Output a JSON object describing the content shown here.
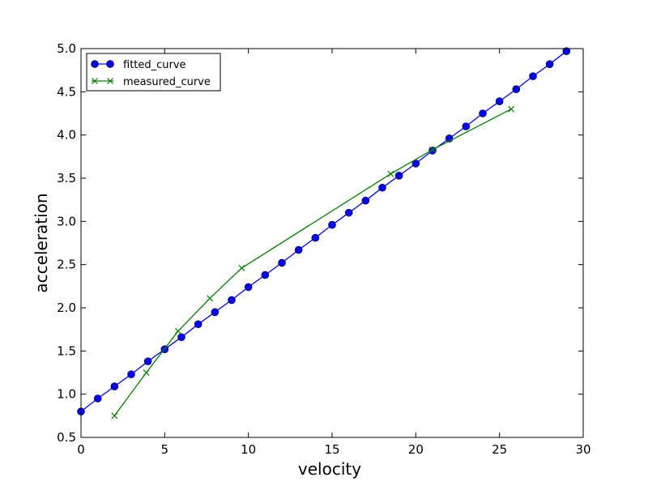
{
  "chart_data": {
    "type": "line",
    "title": "",
    "xlabel": "velocity",
    "ylabel": "acceleration",
    "xlim": [
      0,
      30
    ],
    "ylim": [
      0.5,
      5.0
    ],
    "xticks": [
      "0",
      "5",
      "10",
      "15",
      "20",
      "25",
      "30"
    ],
    "yticks": [
      "0.5",
      "1.0",
      "1.5",
      "2.0",
      "2.5",
      "3.0",
      "3.5",
      "4.0",
      "4.5",
      "5.0"
    ],
    "grid": false,
    "legend_position": "top-left",
    "series": [
      {
        "name": "fitted_curve",
        "color": "#0000ff",
        "marker": "circle",
        "x": [
          0,
          1,
          2,
          3,
          4,
          5,
          6,
          7,
          8,
          9,
          10,
          11,
          12,
          13,
          14,
          15,
          16,
          17,
          18,
          19,
          20,
          21,
          22,
          23,
          24,
          25,
          26,
          27,
          28,
          29
        ],
        "y": [
          0.8,
          0.95,
          1.09,
          1.23,
          1.38,
          1.52,
          1.66,
          1.81,
          1.95,
          2.09,
          2.24,
          2.38,
          2.52,
          2.67,
          2.81,
          2.96,
          3.1,
          3.24,
          3.39,
          3.53,
          3.67,
          3.82,
          3.96,
          4.1,
          4.25,
          4.39,
          4.53,
          4.68,
          4.82,
          4.97
        ]
      },
      {
        "name": "measured_curve",
        "color": "#008000",
        "marker": "x",
        "x": [
          2.0,
          3.9,
          5.8,
          7.7,
          9.6,
          18.5,
          21.0,
          25.7
        ],
        "y": [
          0.75,
          1.25,
          1.73,
          2.11,
          2.46,
          3.55,
          3.83,
          4.3
        ]
      }
    ]
  }
}
